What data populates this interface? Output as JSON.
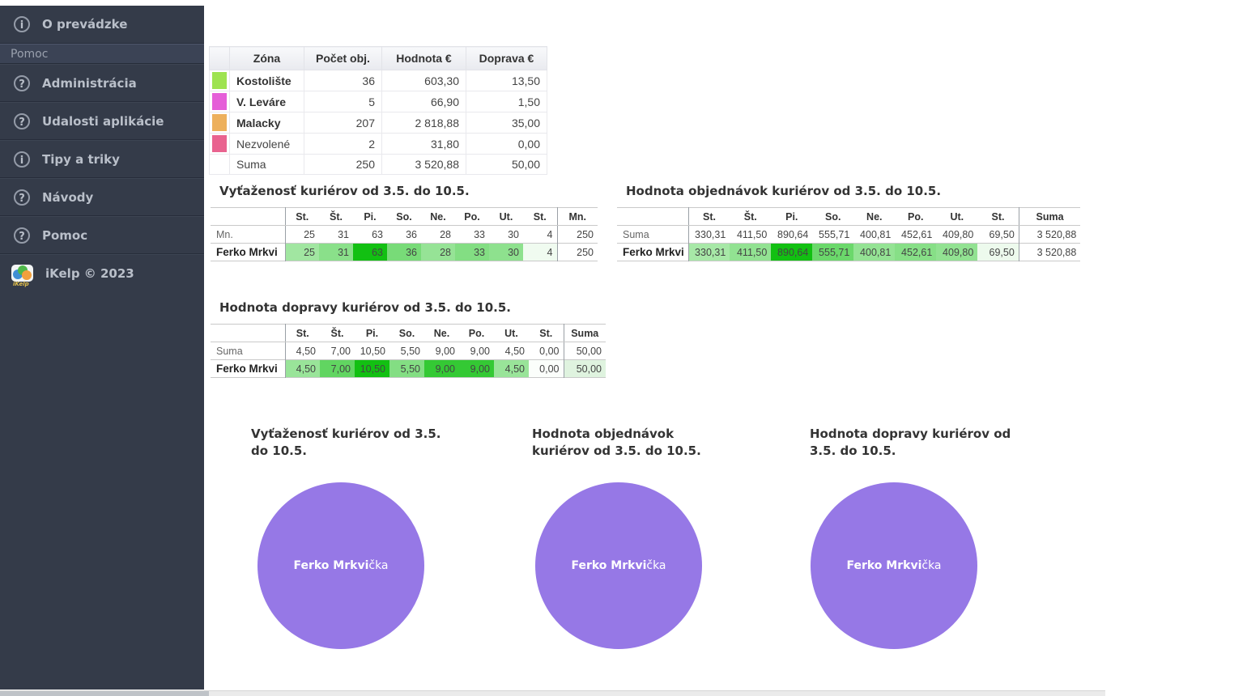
{
  "sidebar": {
    "section_label": "Pomoc",
    "items": [
      {
        "label": "O prevádzke",
        "icon": "info",
        "glyph": "i"
      },
      {
        "label": "Administrácia",
        "icon": "question",
        "glyph": "?"
      },
      {
        "label": "Udalosti aplikácie",
        "icon": "question",
        "glyph": "?"
      },
      {
        "label": "Tipy a triky",
        "icon": "info",
        "glyph": "i"
      },
      {
        "label": "Návody",
        "icon": "question",
        "glyph": "?"
      },
      {
        "label": "Pomoc",
        "icon": "question",
        "glyph": "?"
      }
    ],
    "footer_label": "iKelp © 2023",
    "logo_text": "iKelp"
  },
  "zone_table": {
    "headers": [
      "Zóna",
      "Počet obj.",
      "Hodnota €",
      "Doprava €"
    ],
    "rows": [
      {
        "swatch": "#9ee350",
        "zone": "Kostolište",
        "count": "36",
        "value": "603,30",
        "shipping": "13,50"
      },
      {
        "swatch": "#e55ed8",
        "zone": "V. Leváre",
        "count": "5",
        "value": "66,90",
        "shipping": "1,50"
      },
      {
        "swatch": "#edb05c",
        "zone": "Malacky",
        "count": "207",
        "value": "2 818,88",
        "shipping": "35,00"
      },
      {
        "swatch": "#e9638f",
        "zone": "Nezvolené",
        "count": "2",
        "value": "31,80",
        "shipping": "0,00"
      },
      {
        "swatch": null,
        "zone": "Suma",
        "count": "250",
        "value": "3 520,88",
        "shipping": "50,00"
      }
    ]
  },
  "heat_tables": [
    {
      "title": "Vyťaženosť kuriérov od 3.5. do 10.5.",
      "columns": [
        "St.",
        "Št.",
        "Pi.",
        "So.",
        "Ne.",
        "Po.",
        "Ut.",
        "St.",
        "Mn."
      ],
      "rows": [
        {
          "label": "Mn.",
          "bold": false,
          "bg": null,
          "cells": [
            "25",
            "31",
            "63",
            "36",
            "28",
            "33",
            "30",
            "4",
            "250"
          ]
        },
        {
          "label": "Ferko Mrkvi",
          "bold": true,
          "cells": [
            "25",
            "31",
            "63",
            "36",
            "28",
            "33",
            "30",
            "4",
            "250"
          ],
          "bg": [
            "#a1e6a1",
            "#8ae08a",
            "#12c012",
            "#78db78",
            "#96e396",
            "#83de83",
            "#8ee18e",
            "#f0fbf0",
            ""
          ]
        }
      ]
    },
    {
      "title": "Hodnota objednávok kuriérov od 3.5. do 10.5.",
      "columns": [
        "St.",
        "Št.",
        "Pi.",
        "So.",
        "Ne.",
        "Po.",
        "Ut.",
        "St.",
        "Suma"
      ],
      "rows": [
        {
          "label": "Suma",
          "bold": false,
          "bg": null,
          "cells": [
            "330,31",
            "411,50",
            "890,64",
            "555,71",
            "400,81",
            "452,61",
            "409,80",
            "69,50",
            "3 520,88"
          ]
        },
        {
          "label": "Ferko Mrkvi",
          "bold": true,
          "cells": [
            "330,31",
            "411,50",
            "890,64",
            "555,71",
            "400,81",
            "452,61",
            "409,80",
            "69,50",
            "3 520,88"
          ],
          "bg": [
            "#a7e8a7",
            "#92e292",
            "#12c012",
            "#6bd86b",
            "#94e394",
            "#87df87",
            "#92e292",
            "#edfaed",
            ""
          ]
        }
      ]
    },
    {
      "title": "Hodnota dopravy kuriérov od 3.5. do 10.5.",
      "columns": [
        "St.",
        "Št.",
        "Pi.",
        "So.",
        "Ne.",
        "Po.",
        "Ut.",
        "St.",
        "Suma"
      ],
      "rows": [
        {
          "label": "Suma",
          "bold": false,
          "bg": null,
          "cells": [
            "4,50",
            "7,00",
            "10,50",
            "5,50",
            "9,00",
            "9,00",
            "4,50",
            "0,00",
            "50,00"
          ]
        },
        {
          "label": "Ferko Mrkvi",
          "bold": true,
          "cells": [
            "4,50",
            "7,00",
            "10,50",
            "5,50",
            "9,00",
            "9,00",
            "4,50",
            "0,00",
            "50,00"
          ],
          "bg": [
            "#99e499",
            "#61d561",
            "#12c012",
            "#83de83",
            "#34c934",
            "#34c934",
            "#99e499",
            "#fbfefb",
            "#dff3df"
          ]
        }
      ]
    }
  ],
  "pies": [
    {
      "title_lines": [
        "Vyťaženosť kuriérov od 3.5.",
        "do 10.5."
      ],
      "label_bold": "Ferko Mrkvi",
      "label_rest": "čka",
      "color": "#9678e6"
    },
    {
      "title_lines": [
        "Hodnota objednávok",
        "kuriérov od 3.5. do 10.5."
      ],
      "label_bold": "Ferko Mrkvi",
      "label_rest": "čka",
      "color": "#9678e6"
    },
    {
      "title_lines": [
        "Hodnota dopravy kuriérov od",
        "3.5. do 10.5."
      ],
      "label_bold": "Ferko Mrkvi",
      "label_rest": "čka",
      "color": "#9678e6"
    }
  ],
  "chart_data": [
    {
      "type": "pie",
      "title": "Vyťaženosť kuriérov od 3.5. do 10.5.",
      "slices": [
        {
          "label": "Ferko Mrkvička",
          "fraction": 1.0
        }
      ],
      "color": "#9678e6"
    },
    {
      "type": "pie",
      "title": "Hodnota objednávok kuriérov od 3.5. do 10.5.",
      "slices": [
        {
          "label": "Ferko Mrkvička",
          "fraction": 1.0
        }
      ],
      "color": "#9678e6"
    },
    {
      "type": "pie",
      "title": "Hodnota dopravy kuriérov od 3.5. do 10.5.",
      "slices": [
        {
          "label": "Ferko Mrkvička",
          "fraction": 1.0
        }
      ],
      "color": "#9678e6"
    }
  ]
}
